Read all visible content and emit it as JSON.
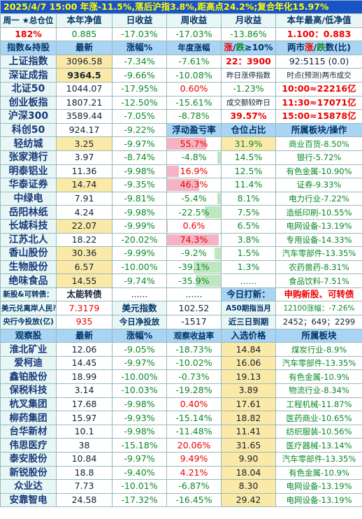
{
  "headline": "2025/4/7  15:00 年涨-11.5%,落后沪指3.8%,距高点24.2%;复合年化15.97%",
  "summary": {
    "headers": [
      "周一 ★总仓位",
      "本年净值",
      "日收益",
      "周收益",
      "月收益",
      "本年最高/低净值"
    ],
    "values": [
      "182%",
      "0.885",
      "-17.03%",
      "-17.03%",
      "-13.86%",
      "1.100：0.883"
    ]
  },
  "index_section": {
    "headers": [
      "指数&持股",
      "最新",
      "涨幅%",
      "年度涨幅"
    ],
    "hdr_zhang": "涨",
    "hdr_die": "跌",
    "hdr_ratio": "≥10%",
    "hdr_2a": "两市",
    "hdr_2b": "涨",
    "hdr_2c": "/",
    "hdr_2d": "跌",
    "hdr_2e": "数(比)",
    "rows": [
      {
        "name": "上证指数",
        "latest": "3096.58",
        "chg": "-7.34%",
        "year": "-7.61%",
        "c5": "22：3900",
        "c6": "92:5115 (0.0)"
      },
      {
        "name": "深证成指",
        "latest": "9364.5",
        "chg": "-9.66%",
        "year": "-10.08%",
        "c5": "昨日涨停指数",
        "c6": "时点(预测)两市成交"
      },
      {
        "name": "北证50",
        "latest": "1044.07",
        "chg": "-17.95%",
        "year": "0.60%",
        "c5": "-1.23%",
        "c6": "10:00≈22216亿"
      },
      {
        "name": "创业板指",
        "latest": "1807.21",
        "chg": "-12.50%",
        "year": "-15.61%",
        "c5": "成交额较昨日",
        "c6": "11:30≈17071亿"
      },
      {
        "name": "沪深300",
        "latest": "3589.44",
        "chg": "-7.05%",
        "year": "-8.78%",
        "c5": "39.57%",
        "c6": "15:00≈15878亿"
      },
      {
        "name": "科创50",
        "latest": "924.17",
        "chg": "-9.22%",
        "year": "浮动盈亏率",
        "c5": "仓位占比",
        "c6": "所属板块/操作"
      }
    ]
  },
  "holdings": [
    {
      "name": "轻纺城",
      "latest": "3.25",
      "chg": "-9.97%",
      "pl": "55.7%",
      "pl_val": 55.7,
      "pos": "31.9%",
      "sector": "商业百货-8.50%"
    },
    {
      "name": "张家港行",
      "latest": "3.97",
      "chg": "-8.74%",
      "pl": "-4.8%",
      "pl_val": -4.8,
      "pos": "14.5%",
      "sector": "银行-5.72%"
    },
    {
      "name": "明泰铝业",
      "latest": "11.36",
      "chg": "-9.98%",
      "pl": "16.9%",
      "pl_val": 16.9,
      "pos": "12.5%",
      "sector": "有色金属-10.90%"
    },
    {
      "name": "华泰证券",
      "latest": "14.74",
      "chg": "-9.35%",
      "pl": "46.3%",
      "pl_val": 46.3,
      "pos": "11.4%",
      "sector": "证券-9.33%"
    },
    {
      "name": "中绿电",
      "latest": "7.91",
      "chg": "-9.81%",
      "pl": "-5.4%",
      "pl_val": -5.4,
      "pos": "8.1%",
      "sector": "电力行业-7.22%"
    },
    {
      "name": "岳阳林纸",
      "latest": "4.24",
      "chg": "-9.98%",
      "pl": "-22.5%",
      "pl_val": -22.5,
      "pos": "7.5%",
      "sector": "造纸印刷-10.55%"
    },
    {
      "name": "长城科技",
      "latest": "22.07",
      "chg": "-9.99%",
      "pl": "0.6%",
      "pl_val": 0.6,
      "pos": "6.5%",
      "sector": "电网设备-13.19%"
    },
    {
      "name": "江苏北人",
      "latest": "18.22",
      "chg": "-20.02%",
      "pl": "74.3%",
      "pl_val": 74.3,
      "pos": "3.8%",
      "sector": "专用设备-14.33%"
    },
    {
      "name": "香山股份",
      "latest": "30.36",
      "chg": "-9.99%",
      "pl": "-9.2%",
      "pl_val": -9.2,
      "pos": "1.5%",
      "sector": "汽车零部件-13.35%"
    },
    {
      "name": "生物股份",
      "latest": "6.57",
      "chg": "-10.00%",
      "pl": "-39.1%",
      "pl_val": -39.1,
      "pos": "1.3%",
      "sector": "农药兽药-8.31%"
    },
    {
      "name": "绝味食品",
      "latest": "14.55",
      "chg": "-9.74%",
      "pl": "-35.9%",
      "pl_val": -35.9,
      "pos": "......",
      "sector": "食品饮料-7.51%"
    }
  ],
  "misc": {
    "new_label": "新股&可转债：",
    "new_val": "太能转债",
    "dots1": "......",
    "dots2": "......",
    "dots3": "......",
    "today_label": "今日打新：",
    "today_val": "申购新股、可转债",
    "fx_label": "美元兑离岸人民币",
    "fx_val": "7.3179",
    "usd_label": "美元指数",
    "usd_val": "102.52",
    "a50_label": "A50期指当月",
    "a50_val": "12100涨幅：-7.26%",
    "cb_label": "央行今投放(亿)",
    "cb_val": "935",
    "net_label": "今日净投放",
    "net_val": "-1517",
    "exp_label": "近三日到期",
    "exp_val": "2452；649；2299"
  },
  "watch_headers": [
    "观察股",
    "最新",
    "涨幅%",
    "观察收益率",
    "入选价格",
    "所属板块"
  ],
  "watch": [
    {
      "name": "淮北矿业",
      "latest": "12.06",
      "chg": "-9.05%",
      "ret": "-18.73%",
      "price": "14.84",
      "sector": "煤炭行业-8.9%"
    },
    {
      "name": "爱柯迪",
      "latest": "14.45",
      "chg": "-9.97%",
      "ret": "-10.02%",
      "price": "16.06",
      "sector": "汽车零部件-13.35%"
    },
    {
      "name": "鑫铂股份",
      "latest": "18.99",
      "chg": "-10.00%",
      "ret": "-0.73%",
      "price": "19.13",
      "sector": "有色金属-10.9%"
    },
    {
      "name": "保税科技",
      "latest": "3.14",
      "chg": "-10.03%",
      "ret": "-19.28%",
      "price": "3.89",
      "sector": "物流行业-8.34%"
    },
    {
      "name": "杭叉集团",
      "latest": "17.68",
      "chg": "-9.98%",
      "ret": "0.40%",
      "price": "17.61",
      "sector": "工程机械-11.87%"
    },
    {
      "name": "柳药集团",
      "latest": "15.97",
      "chg": "-9.93%",
      "ret": "-15.14%",
      "price": "18.82",
      "sector": "医药商业-10.65%"
    },
    {
      "name": "台华新材",
      "latest": "10.1",
      "chg": "-9.98%",
      "ret": "-11.48%",
      "price": "11.41",
      "sector": "纺织服装-10.56%"
    },
    {
      "name": "伟思医疗",
      "latest": "38",
      "chg": "-15.18%",
      "ret": "20.06%",
      "price": "31.65",
      "sector": "医疗器械-13.14%"
    },
    {
      "name": "泰安股份",
      "latest": "10.84",
      "chg": "-9.97%",
      "ret": "9.49%",
      "price": "9.90",
      "sector": "汽车零部件-13.35%"
    },
    {
      "name": "新锐股份",
      "latest": "18.8",
      "chg": "-9.40%",
      "ret": "4.21%",
      "price": "18.04",
      "sector": "有色金属-10.9%"
    },
    {
      "name": "众业达",
      "latest": "7.73",
      "chg": "-10.01%",
      "ret": "-6.87%",
      "price": "8.30",
      "sector": "电网设备-13.19%"
    },
    {
      "name": "安靠智电",
      "latest": "24.58",
      "chg": "-17.32%",
      "ret": "-16.45%",
      "price": "29.42",
      "sector": "电网设备-13.19%"
    }
  ]
}
